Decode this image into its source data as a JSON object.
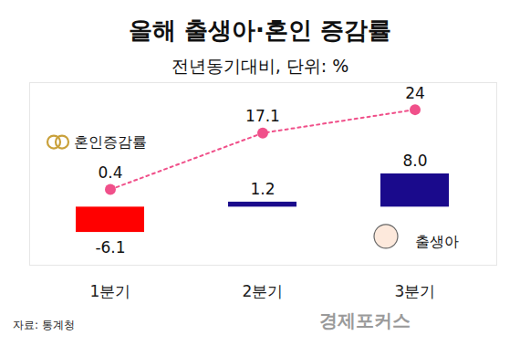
{
  "chart_data": {
    "type": "bar",
    "title": "올해 출생아·혼인 증감률",
    "subtitle": "전년동기대비, 단위: %",
    "categories": [
      "1분기",
      "2분기",
      "3분기"
    ],
    "series": [
      {
        "name": "출생아",
        "type": "bar",
        "colors": [
          "#ff0000",
          "#1a0a8c",
          "#1a0a8c"
        ],
        "values": [
          -6.1,
          1.2,
          8.0
        ],
        "value_labels": [
          "-6.1",
          "1.2",
          "8.0"
        ]
      },
      {
        "name": "혼인증감률",
        "type": "line",
        "axis": "y2",
        "color": "#f0508a",
        "marker": "circle",
        "line_style": "dotted",
        "values": [
          0.4,
          17.1,
          24
        ]
      }
    ],
    "ylim": [
      -14,
      30
    ],
    "yticks": [],
    "y2lim": [
      -22,
      32
    ],
    "y2ticks": [],
    "tick_labels": "x",
    "data_labels": true,
    "source": "자료: 통계청",
    "logo": "경제포커스"
  }
}
